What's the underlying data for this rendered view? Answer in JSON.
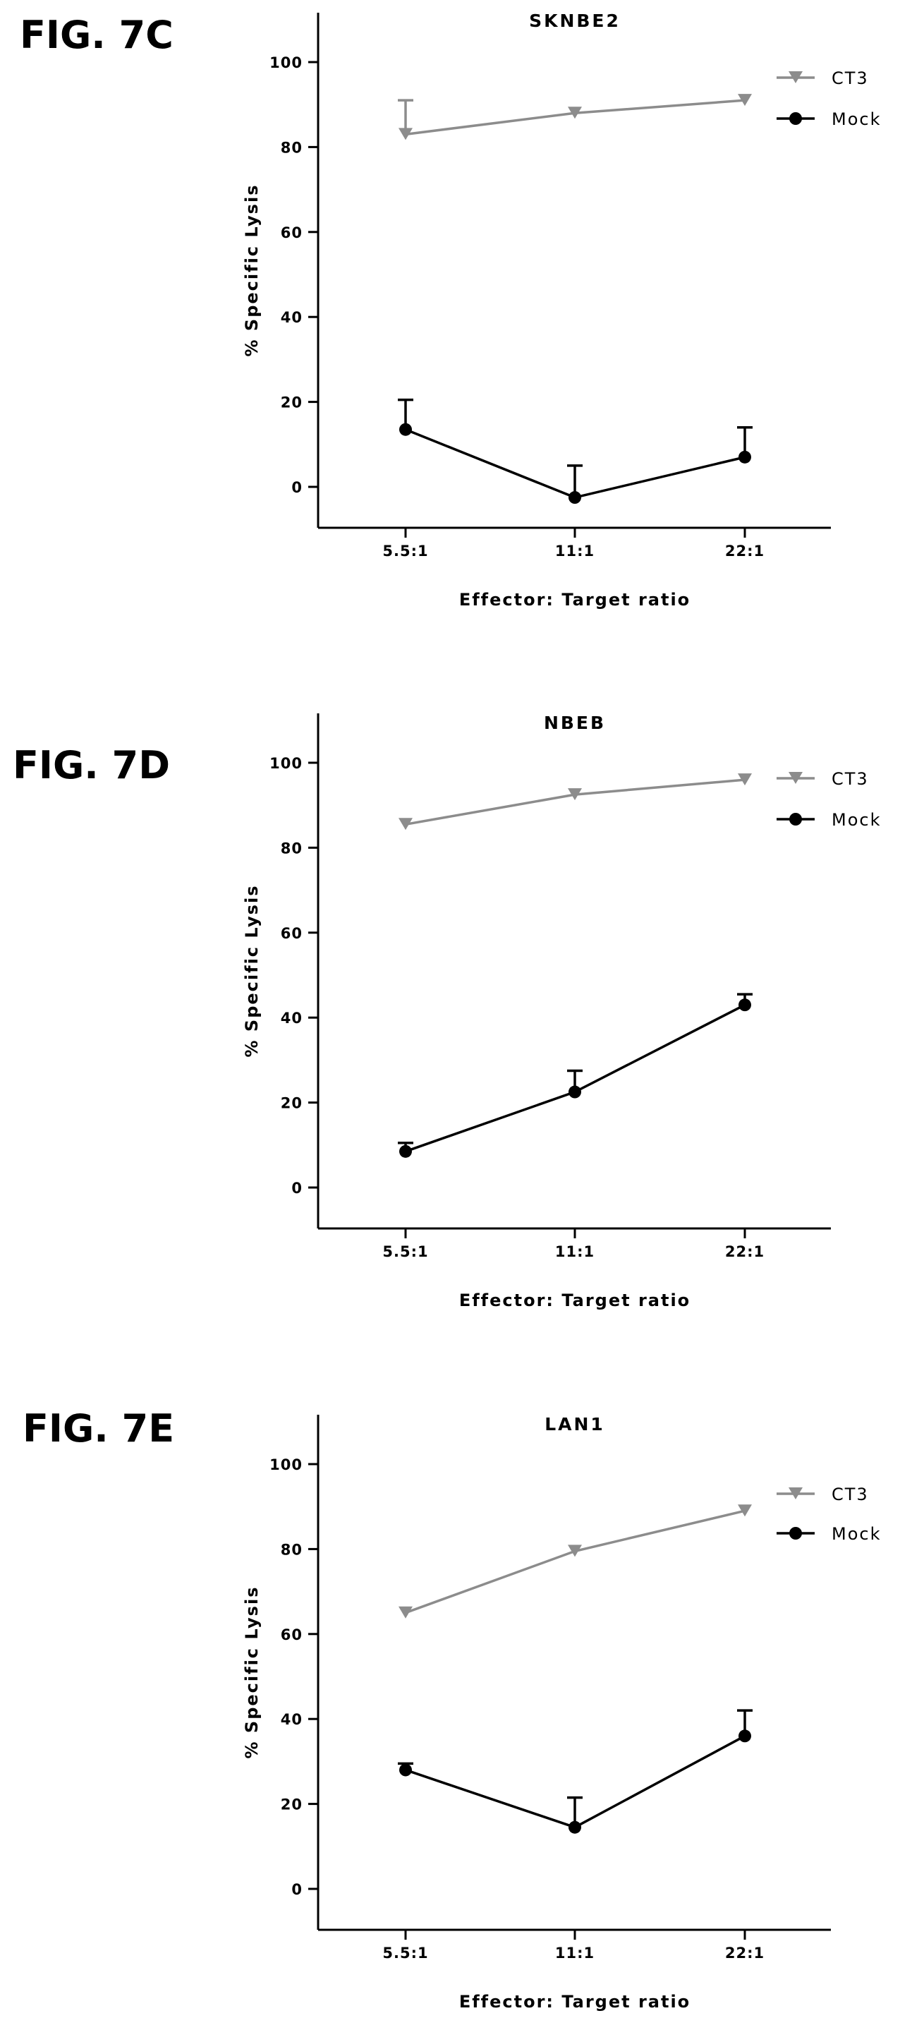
{
  "colors": {
    "ct3": "#8c8c8c",
    "mock": "#000000",
    "axis": "#000000"
  },
  "chart_data": [
    {
      "type": "line",
      "figure_label": "FIG. 7C",
      "title": "SKNBE2",
      "xlabel": "Effector: Target ratio",
      "ylabel": "% Specific Lysis",
      "categories": [
        "5.5:1",
        "11:1",
        "22:1"
      ],
      "ylim": [
        -10,
        110
      ],
      "yticks": [
        "0",
        "20",
        "40",
        "60",
        "80",
        "100"
      ],
      "legend_position": "top-right",
      "series": [
        {
          "name": "CT3",
          "marker": "triangle-down",
          "values": [
            83,
            88,
            91
          ],
          "error_up": [
            8,
            0.5,
            0.5
          ]
        },
        {
          "name": "Mock",
          "marker": "circle",
          "values": [
            13.5,
            -2.5,
            7
          ],
          "error_up": [
            7,
            7.5,
            7
          ]
        }
      ]
    },
    {
      "type": "line",
      "figure_label": "FIG. 7D",
      "title": "NBEB",
      "xlabel": "Effector: Target ratio",
      "ylabel": "% Specific Lysis",
      "categories": [
        "5.5:1",
        "11:1",
        "22:1"
      ],
      "ylim": [
        -10,
        110
      ],
      "yticks": [
        "0",
        "20",
        "40",
        "60",
        "80",
        "100"
      ],
      "legend_position": "top-right",
      "series": [
        {
          "name": "CT3",
          "marker": "triangle-down",
          "values": [
            85.5,
            92.5,
            96
          ],
          "error_up": [
            1,
            1,
            1
          ]
        },
        {
          "name": "Mock",
          "marker": "circle",
          "values": [
            8.5,
            22.5,
            43
          ],
          "error_up": [
            2,
            5,
            2.5
          ]
        }
      ]
    },
    {
      "type": "line",
      "figure_label": "FIG. 7E",
      "title": "LAN1",
      "xlabel": "Effector: Target ratio",
      "ylabel": "% Specific Lysis",
      "categories": [
        "5.5:1",
        "11:1",
        "22:1"
      ],
      "ylim": [
        -10,
        110
      ],
      "yticks": [
        "0",
        "20",
        "40",
        "60",
        "80",
        "100"
      ],
      "legend_position": "top-right",
      "series": [
        {
          "name": "CT3",
          "marker": "triangle-down",
          "values": [
            65,
            79.5,
            89
          ],
          "error_up": [
            0.5,
            0.5,
            0.5
          ]
        },
        {
          "name": "Mock",
          "marker": "circle",
          "values": [
            28,
            14.5,
            36
          ],
          "error_up": [
            1.5,
            7,
            6
          ]
        }
      ]
    }
  ]
}
